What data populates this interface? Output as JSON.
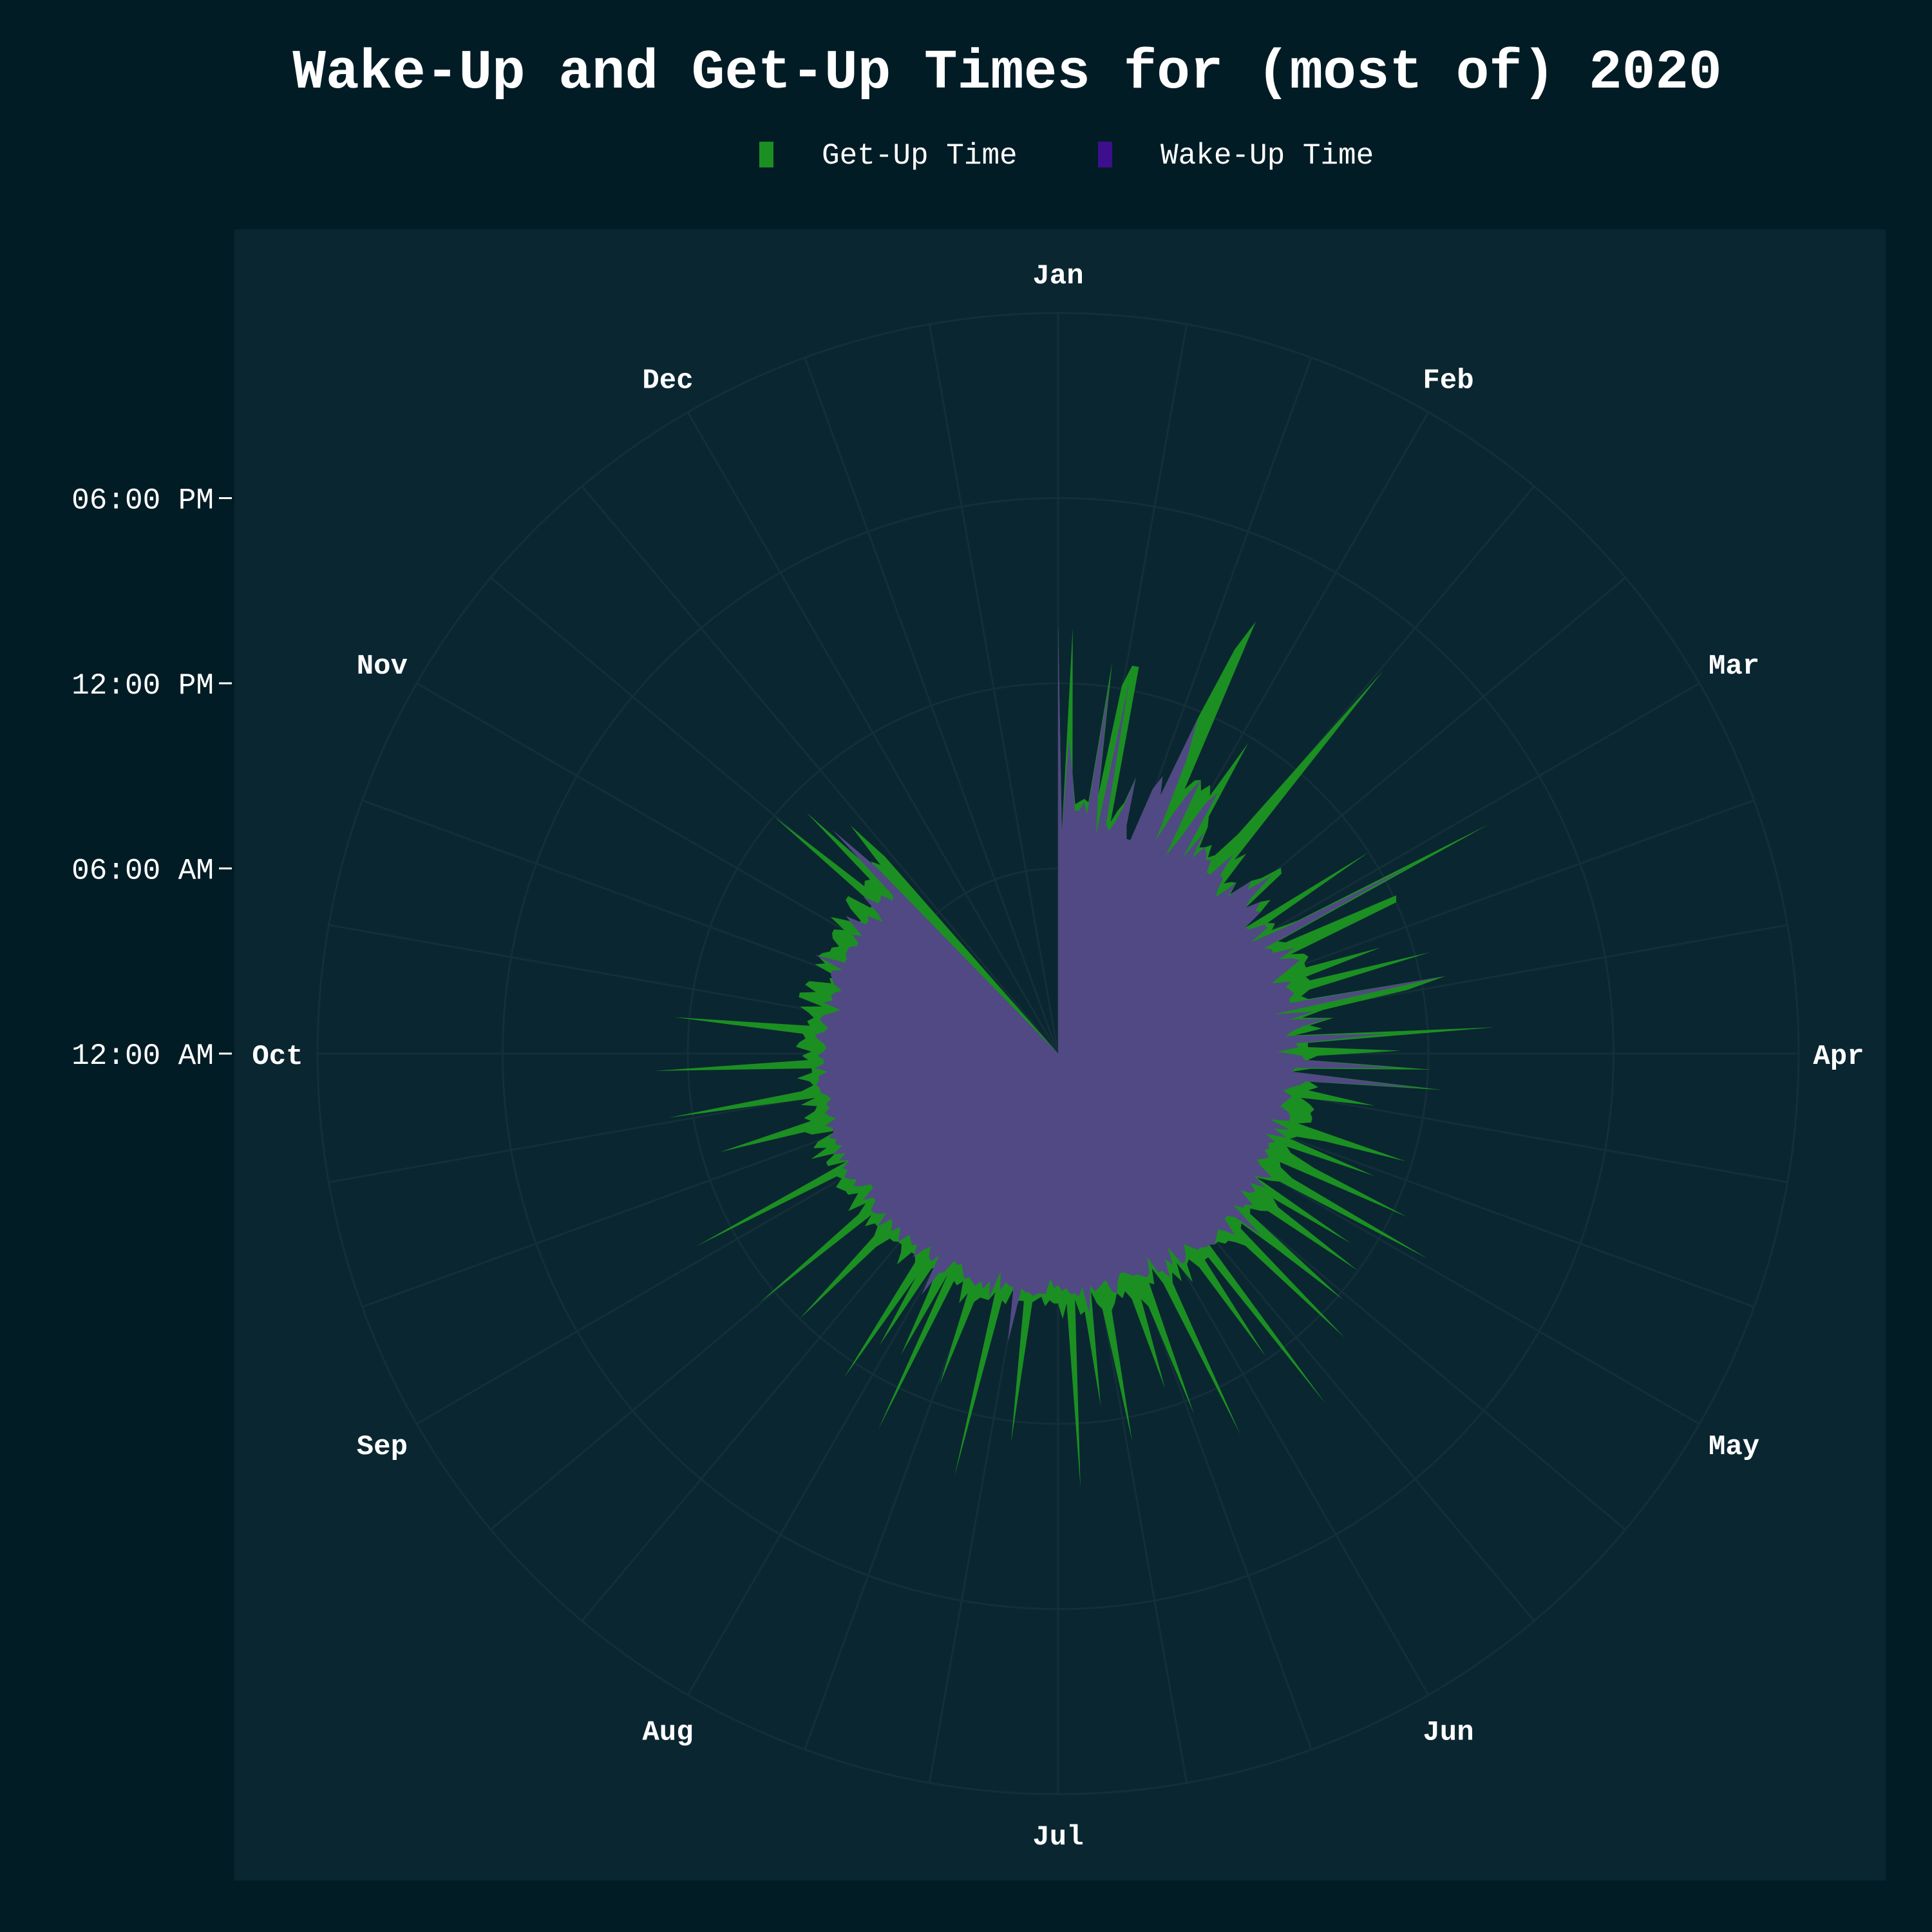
{
  "colors": {
    "page_background": "#021c25",
    "plot_background": "#0a2630",
    "grid": "#142f39",
    "get_up": "#1b8f22",
    "wake_up": "#514983",
    "legend_wake_swatch": "#3d0f8f",
    "text": "#ffffff"
  },
  "chart_data": {
    "type": "area",
    "subtype": "polar-radial-area",
    "title": "Wake-Up and Get-Up Times for (most of) 2020",
    "legend": {
      "placement": "top-center"
    },
    "angular_axis": {
      "direction": "clockwise",
      "start": "top",
      "labels": [
        "Jan",
        "Feb",
        "Mar",
        "Apr",
        "May",
        "Jun",
        "Jul",
        "Aug",
        "Sep",
        "Oct",
        "Nov",
        "Dec"
      ],
      "minor_gridlines_per_label": 2
    },
    "radial_axis": {
      "unit": "hours after midnight",
      "range_hours": [
        0,
        24
      ],
      "tick_hours": [
        0,
        6,
        12,
        18
      ],
      "tick_labels": [
        "12:00 AM",
        "06:00 AM",
        "12:00 PM",
        "06:00 PM"
      ],
      "grid": true
    },
    "x_unit": "day of year (1 = Jan 1)",
    "data_day_range": [
      1,
      318
    ],
    "series": [
      {
        "name": "Get-Up Time",
        "color": "#1b8f22",
        "values_hours_by_day": [
          13.9,
          7.2,
          13.8,
          9.1,
          8.1,
          8.2,
          8.3,
          8.2,
          12.8,
          8.5,
          12.1,
          12.8,
          12.8,
          7.7,
          8.1,
          8.4,
          9.3,
          7.7,
          7.3,
          7.3,
          9.1,
          9.6,
          9.0,
          11.8,
          14.3,
          15.4,
          9.5,
          9.9,
          10.0,
          9.7,
          10.0,
          9.7,
          11.8,
          9.1,
          8.8,
          8.1,
          8.2,
          8.4,
          8.0,
          8.2,
          9.2,
          16.3,
          11.1,
          8.5,
          8.9,
          7.7,
          7.9,
          8.0,
          7.6,
          8.4,
          8.7,
          9.4,
          9.3,
          7.7,
          8.2,
          8.5,
          8.0,
          7.3,
          12.0,
          8.0,
          8.2,
          8.0,
          8.9,
          15.8,
          8.0,
          8.2,
          12.1,
          12.0,
          8.2,
          8.6,
          8.7,
          8.5,
          8.5,
          11.0,
          8.4,
          8.5,
          12.5,
          8.4,
          8.1,
          8.3,
          12.8,
          11.5,
          8.7,
          8.0,
          9.0,
          8.2,
          8.6,
          7.7,
          14.2,
          8.1,
          8.1,
          11.1,
          8.4,
          8.1,
          12.1,
          8.2,
          7.6,
          12.5,
          8.2,
          8.5,
          8.2,
          10.4,
          8.0,
          8.3,
          8.5,
          8.4,
          8.5,
          8.5,
          8.1,
          11.8,
          9.1,
          8.2,
          8.0,
          11.0,
          8.0,
          8.2,
          9.1,
          12.5,
          8.0,
          8.1,
          8.6,
          13.7,
          8.3,
          8.0,
          7.6,
          11.3,
          8.4,
          8.7,
          12.0,
          8.5,
          8.3,
          8.0,
          8.1,
          12.2,
          9.5,
          8.1,
          8.2,
          13.1,
          8.7,
          8.4,
          8.2,
          8.2,
          8.0,
          8.0,
          7.9,
          14.3,
          8.2,
          8.2,
          11.9,
          8.3,
          7.9,
          8.0,
          8.6,
          7.8,
          8.4,
          8.0,
          8.3,
          13.7,
          8.2,
          7.6,
          8.1,
          8.0,
          12.5,
          8.7,
          8.4,
          11.4,
          8.3,
          8.0,
          8.2,
          8.0,
          8.3,
          8.5,
          12.8,
          8.4,
          8.2,
          7.8,
          11.5,
          8.4,
          8.5,
          8.0,
          14.1,
          8.1,
          8.6,
          8.1,
          8.1,
          8.0,
          8.2,
          7.9,
          8.0,
          8.1,
          12.7,
          8.1,
          8.1,
          8.2,
          7.8,
          8.3,
          8.2,
          14.1,
          8.0,
          8.3,
          8.3,
          8.3,
          8.5,
          11.4,
          8.3,
          8.7,
          8.0,
          8.2,
          8.1,
          13.5,
          8.0,
          11.0,
          8.8,
          7.9,
          8.1,
          11.1,
          8.6,
          12.6,
          8.2,
          8.0,
          8.0,
          8.6,
          8.2,
          8.0,
          8.0,
          8.1,
          8.1,
          8.6,
          12.0,
          8.4,
          8.1,
          8.1,
          8.4,
          8.0,
          12.6,
          8.3,
          7.9,
          8.5,
          8.2,
          7.9,
          8.2,
          8.2,
          8.3,
          8.4,
          8.1,
          8.2,
          13.3,
          7.7,
          8.3,
          8.3,
          7.9,
          8.7,
          8.1,
          8.5,
          8.3,
          7.6,
          8.4,
          8.6,
          11.4,
          8.3,
          8.5,
          8.1,
          8.0,
          8.5,
          8.0,
          12.8,
          8.4,
          8.0,
          8.1,
          8.5,
          8.0,
          8.0,
          13.1,
          8.1,
          8.3,
          8.0,
          8.5,
          8.4,
          8.2,
          8.3,
          12.5,
          8.1,
          8.2,
          8.0,
          8.2,
          8.5,
          7.8,
          8.6,
          8.6,
          8.1,
          8.5,
          8.4,
          7.7,
          7.8,
          7.6,
          8.4,
          8.1,
          8.4,
          8.3,
          8.1,
          8.1,
          7.9,
          8.2,
          8.3,
          8.3,
          8.0,
          8.6,
          8.2,
          7.8,
          7.7,
          8.2,
          8.5,
          8.5,
          7.7,
          7.7,
          12.0,
          8.3,
          8.4,
          8.3,
          11.3,
          8.1,
          8.7,
          8.4,
          10.0,
          8.5
        ]
      },
      {
        "name": "Wake-Up Time",
        "color": "#3d0f8f",
        "values_hours_by_day": [
          13.9,
          7.2,
          10.2,
          9.1,
          7.9,
          7.9,
          8.2,
          7.8,
          12.1,
          8.4,
          7.2,
          12.3,
          7.6,
          7.4,
          7.7,
          8.2,
          9.3,
          7.7,
          7.3,
          7.3,
          9.1,
          9.6,
          9.0,
          11.8,
          10.4,
          7.6,
          8.6,
          9.4,
          10.0,
          7.3,
          8.0,
          9.4,
          9.9,
          7.5,
          8.6,
          7.7,
          8.2,
          8.1,
          7.9,
          8.0,
          7.6,
          7.6,
          8.6,
          7.8,
          7.8,
          7.4,
          7.2,
          8.0,
          7.5,
          8.4,
          8.1,
          9.0,
          8.0,
          7.7,
          8.2,
          7.9,
          8.0,
          7.3,
          7.4,
          7.9,
          7.9,
          7.2,
          8.5,
          12.9,
          7.5,
          7.7,
          7.7,
          8.4,
          7.8,
          8.2,
          8.4,
          8.0,
          7.6,
          7.3,
          7.9,
          7.7,
          7.8,
          7.9,
          7.7,
          7.7,
          12.8,
          7.1,
          8.4,
          7.6,
          8.8,
          8.0,
          7.6,
          7.4,
          10.7,
          7.7,
          7.8,
          7.1,
          7.9,
          8.0,
          11.0,
          7.7,
          7.6,
          11.7,
          8.1,
          7.9,
          7.6,
          7.4,
          7.7,
          7.6,
          7.5,
          7.4,
          7.7,
          7.8,
          7.8,
          7.2,
          7.9,
          7.4,
          7.9,
          7.2,
          7.6,
          7.4,
          7.5,
          7.4,
          7.6,
          7.5,
          7.3,
          7.5,
          8.0,
          7.8,
          7.5,
          8.0,
          7.5,
          7.8,
          7.7,
          7.4,
          8.0,
          7.8,
          7.8,
          7.5,
          8.8,
          7.8,
          7.6,
          7.6,
          8.2,
          7.9,
          7.7,
          7.8,
          7.9,
          8.0,
          7.9,
          7.9,
          7.8,
          7.8,
          7.6,
          7.4,
          7.7,
          7.9,
          7.9,
          7.2,
          7.8,
          7.5,
          8.1,
          7.8,
          7.8,
          7.2,
          7.7,
          7.8,
          7.7,
          7.6,
          7.6,
          7.5,
          7.4,
          7.4,
          7.6,
          8.0,
          7.9,
          7.5,
          7.6,
          7.7,
          7.8,
          7.6,
          8.5,
          7.6,
          7.9,
          7.8,
          7.8,
          7.6,
          7.7,
          7.5,
          7.6,
          7.3,
          7.8,
          7.8,
          7.8,
          7.9,
          7.8,
          7.8,
          7.7,
          9.5,
          7.7,
          7.7,
          7.6,
          7.9,
          7.3,
          8.2,
          7.7,
          8.0,
          7.8,
          8.0,
          7.9,
          7.8,
          7.9,
          7.7,
          7.5,
          7.6,
          7.5,
          8.0,
          8.1,
          9.0,
          7.6,
          7.9,
          7.8,
          7.5,
          7.7,
          8.1,
          7.7,
          7.8,
          7.7,
          7.6,
          8.0,
          7.8,
          7.6,
          7.9,
          7.7,
          7.6,
          8.1,
          7.6,
          7.8,
          7.9,
          7.9,
          7.6,
          7.6,
          7.9,
          7.4,
          7.4,
          7.7,
          7.9,
          7.7,
          7.9,
          8.0,
          7.8,
          7.9,
          7.6,
          7.9,
          7.6,
          8.0,
          7.6,
          7.8,
          7.7,
          7.9,
          7.7,
          7.7,
          7.9,
          7.5,
          7.7,
          7.8,
          7.6,
          7.7,
          7.5,
          7.6,
          7.8,
          7.8,
          7.9,
          7.8,
          7.8,
          7.5,
          7.9,
          7.6,
          7.6,
          7.8,
          7.6,
          7.5,
          7.6,
          7.8,
          7.9,
          7.6,
          7.5,
          7.7,
          7.8,
          7.7,
          7.4,
          7.2,
          7.8,
          7.5,
          7.6,
          7.5,
          7.3,
          7.6,
          7.7,
          7.8,
          7.8,
          7.5,
          8.5,
          7.5,
          7.5,
          7.6,
          7.6,
          7.6,
          7.4,
          7.4,
          7.7,
          7.4,
          7.8,
          8.2,
          7.5,
          7.5,
          7.6,
          7.1,
          7.4,
          8.1,
          7.6,
          7.6,
          7.7,
          7.3,
          7.4,
          10.3,
          8.4
        ]
      }
    ]
  }
}
